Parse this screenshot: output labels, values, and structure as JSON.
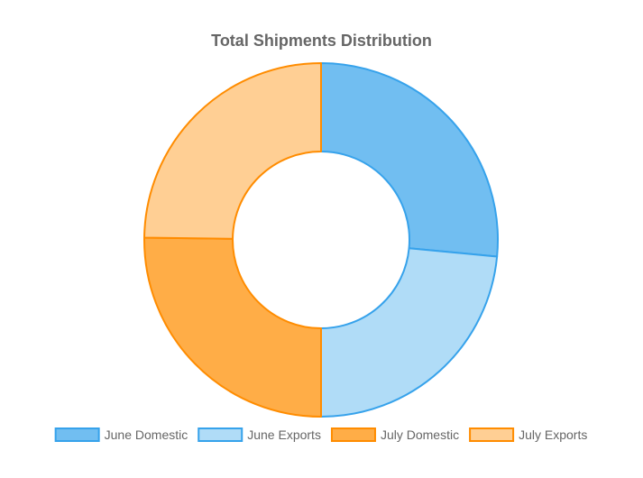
{
  "chart_data": {
    "type": "doughnut",
    "title": "Total Shipments Distribution",
    "categories": [
      "June Domestic",
      "June Exports",
      "July Domestic",
      "July Exports"
    ],
    "values": [
      26.5,
      23.5,
      25.2,
      24.8
    ],
    "colors": {
      "fill": [
        "#71bef1",
        "#b0dcf7",
        "#ffad47",
        "#ffcf94"
      ],
      "stroke": [
        "#36a2eb",
        "#36a2eb",
        "#ff8c00",
        "#ff8c00"
      ]
    },
    "legend_position": "bottom",
    "start_angle": "top",
    "direction": "clockwise"
  }
}
